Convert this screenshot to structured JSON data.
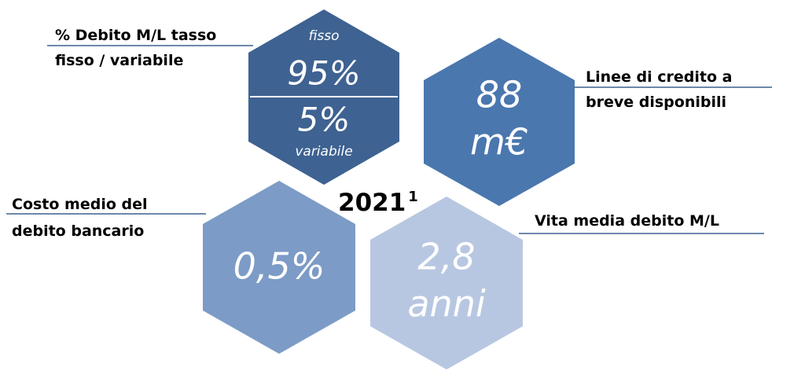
{
  "year": {
    "text": "2021",
    "superscript": "1"
  },
  "items": [
    {
      "label": [
        "% Debito M/L tasso",
        "fisso / variabile"
      ],
      "top_caption": "fisso",
      "top_value": "95%",
      "bottom_value": "5%",
      "bottom_caption": "variabile"
    },
    {
      "label": [
        "Linee di credito a",
        "breve disponibili"
      ],
      "value": [
        "88",
        "m€"
      ]
    },
    {
      "label": [
        "Costo medio del",
        "debito bancario"
      ],
      "value": [
        "0,5%"
      ]
    },
    {
      "label": [
        "Vita media debito M/L"
      ],
      "value": [
        "2,8",
        "anni"
      ]
    }
  ]
}
